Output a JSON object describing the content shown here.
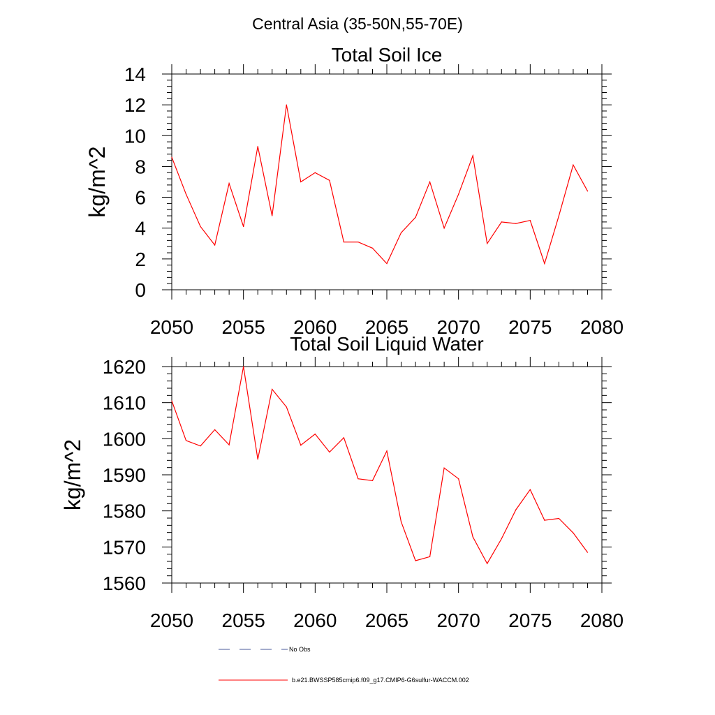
{
  "main_title": "Central Asia (35-50N,55-70E)",
  "chart_data": [
    {
      "type": "line",
      "title": "Total Soil Ice",
      "xlabel": "",
      "ylabel": "kg/m^2",
      "xlim": [
        2050,
        2080
      ],
      "ylim": [
        0,
        14
      ],
      "xticks": [
        2050,
        2055,
        2060,
        2065,
        2070,
        2075,
        2080
      ],
      "yticks": [
        0,
        2,
        4,
        6,
        8,
        10,
        12,
        14
      ],
      "grid": false,
      "x": [
        2050,
        2051,
        2052,
        2053,
        2054,
        2055,
        2056,
        2057,
        2058,
        2059,
        2060,
        2061,
        2062,
        2063,
        2064,
        2065,
        2066,
        2067,
        2068,
        2069,
        2070,
        2071,
        2072,
        2073,
        2074,
        2075,
        2076,
        2077,
        2078,
        2079
      ],
      "series": [
        {
          "name": "b.e21.BWSSP585cmip6.f09_g17.CMIP6-G6sulfur-WACCM.002",
          "color": "#ff0000",
          "values": [
            8.6,
            6.2,
            4.1,
            2.9,
            6.9,
            4.1,
            9.3,
            4.8,
            12.0,
            7.0,
            7.6,
            7.1,
            3.1,
            3.1,
            2.7,
            1.7,
            3.7,
            4.7,
            7.0,
            4.0,
            6.2,
            8.7,
            3.0,
            4.4,
            4.3,
            4.5,
            1.7,
            4.8,
            8.1,
            6.4
          ]
        }
      ]
    },
    {
      "type": "line",
      "title": "Total Soil Liquid Water",
      "xlabel": "",
      "ylabel": "kg/m^2",
      "xlim": [
        2050,
        2080
      ],
      "ylim": [
        1560,
        1620
      ],
      "xticks": [
        2050,
        2055,
        2060,
        2065,
        2070,
        2075,
        2080
      ],
      "yticks": [
        1560,
        1570,
        1580,
        1590,
        1600,
        1610,
        1620
      ],
      "grid": false,
      "x": [
        2050,
        2051,
        2052,
        2053,
        2054,
        2055,
        2056,
        2057,
        2058,
        2059,
        2060,
        2061,
        2062,
        2063,
        2064,
        2065,
        2066,
        2067,
        2068,
        2069,
        2070,
        2071,
        2072,
        2073,
        2074,
        2075,
        2076,
        2077,
        2078,
        2079
      ],
      "series": [
        {
          "name": "b.e21.BWSSP585cmip6.f09_g17.CMIP6-G6sulfur-WACCM.002",
          "color": "#ff0000",
          "values": [
            1610.5,
            1599.5,
            1598,
            1602.5,
            1598.3,
            1620,
            1594.3,
            1613.7,
            1608.8,
            1598.2,
            1601.3,
            1596.3,
            1600.3,
            1588.9,
            1588.4,
            1596.6,
            1577,
            1566.2,
            1567.3,
            1591.9,
            1588.9,
            1572.8,
            1565.4,
            1572.3,
            1580.3,
            1585.9,
            1577.4,
            1577.9,
            1573.9,
            1568.5
          ]
        }
      ]
    }
  ],
  "legend": {
    "placement": "bottom",
    "entries": [
      {
        "label": "No Obs",
        "style": "dashed",
        "color": "#4a5a9a"
      },
      {
        "label": "b.e21.BWSSP585cmip6.f09_g17.CMIP6-G6sulfur-WACCM.002",
        "style": "solid",
        "color": "#ff0000"
      }
    ]
  }
}
